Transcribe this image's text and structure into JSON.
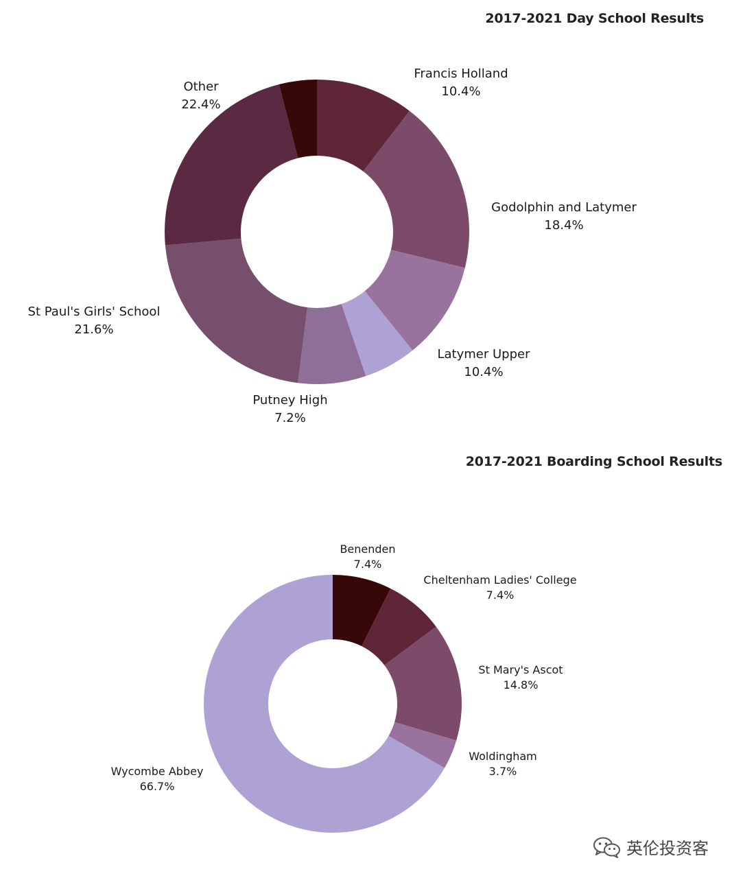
{
  "chart_data": [
    {
      "type": "pie",
      "title": "2017-2021 Day School Results",
      "donut": true,
      "slices": [
        {
          "label": "Francis Holland",
          "value": 10.4,
          "display": "10.4%",
          "color": "#5e2636"
        },
        {
          "label": "Godolphin and Latymer",
          "value": 18.4,
          "display": "18.4%",
          "color": "#7d4b6a"
        },
        {
          "label": "Latymer Upper",
          "value": 10.4,
          "display": "10.4%",
          "color": "#98739e"
        },
        {
          "label": "",
          "value": 5.6,
          "display": "",
          "color": "#aea2d4"
        },
        {
          "label": "Putney High",
          "value": 7.2,
          "display": "7.2%",
          "color": "#8e6f97"
        },
        {
          "label": "St Paul's Girls' School",
          "value": 21.6,
          "display": "21.6%",
          "color": "#764f6d"
        },
        {
          "label": "Other",
          "value": 22.4,
          "display": "22.4%",
          "color": "#5b2942"
        },
        {
          "label": "",
          "value": 4.0,
          "display": "",
          "color": "#360808"
        }
      ]
    },
    {
      "type": "pie",
      "title": "2017-2021 Boarding School Results",
      "donut": true,
      "slices": [
        {
          "label": "Benenden",
          "value": 7.4,
          "display": "7.4%",
          "color": "#360808"
        },
        {
          "label": "Cheltenham Ladies' College",
          "value": 7.4,
          "display": "7.4%",
          "color": "#5e2636"
        },
        {
          "label": "St Mary's Ascot",
          "value": 14.8,
          "display": "14.8%",
          "color": "#7d4b6a"
        },
        {
          "label": "Woldingham",
          "value": 3.7,
          "display": "3.7%",
          "color": "#98739e"
        },
        {
          "label": "Wycombe Abbey",
          "value": 66.7,
          "display": "66.7%",
          "color": "#aea2d4"
        }
      ]
    }
  ],
  "watermark": {
    "text": "英伦投资客",
    "icon": "wechat-icon"
  }
}
